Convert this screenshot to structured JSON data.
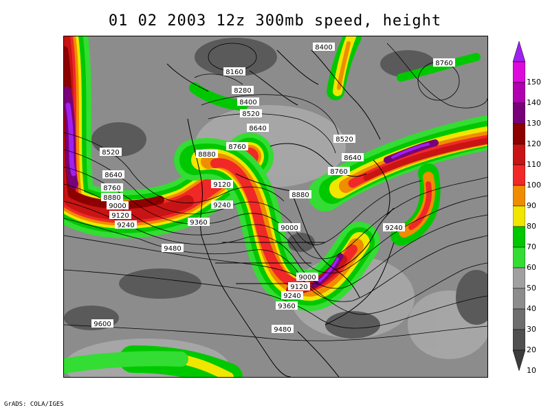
{
  "title": "01 02 2003 12z 300mb speed, height",
  "credit": "GrADS: COLA/IGES",
  "colorbar": {
    "labels": [
      "150",
      "140",
      "130",
      "120",
      "110",
      "100",
      "90",
      "80",
      "70",
      "60",
      "50",
      "40",
      "30",
      "20",
      "10"
    ],
    "colors": [
      "#a020f0",
      "#dc0bdc",
      "#b000b0",
      "#780078",
      "#8c0000",
      "#c81414",
      "#f02828",
      "#f08c00",
      "#f0e600",
      "#00c800",
      "#33dd33",
      "#a0a0a0",
      "#8c8c8c",
      "#6e6e6e",
      "#505050",
      "#3c3c3c"
    ]
  },
  "contour_labels": [
    {
      "text": "8400"
    },
    {
      "text": "8760"
    },
    {
      "text": "8160"
    },
    {
      "text": "8280"
    },
    {
      "text": "8400"
    },
    {
      "text": "8520"
    },
    {
      "text": "8640"
    },
    {
      "text": "8520"
    },
    {
      "text": "8760"
    },
    {
      "text": "8880"
    },
    {
      "text": "8640"
    },
    {
      "text": "8520"
    },
    {
      "text": "8640"
    },
    {
      "text": "8760"
    },
    {
      "text": "8880"
    },
    {
      "text": "9000"
    },
    {
      "text": "9120"
    },
    {
      "text": "9240"
    },
    {
      "text": "9120"
    },
    {
      "text": "9240"
    },
    {
      "text": "8760"
    },
    {
      "text": "8880"
    },
    {
      "text": "9000"
    },
    {
      "text": "9240"
    },
    {
      "text": "9360"
    },
    {
      "text": "9480"
    },
    {
      "text": "9000"
    },
    {
      "text": "9120"
    },
    {
      "text": "9240"
    },
    {
      "text": "9360"
    },
    {
      "text": "9600"
    },
    {
      "text": "9480"
    }
  ]
}
